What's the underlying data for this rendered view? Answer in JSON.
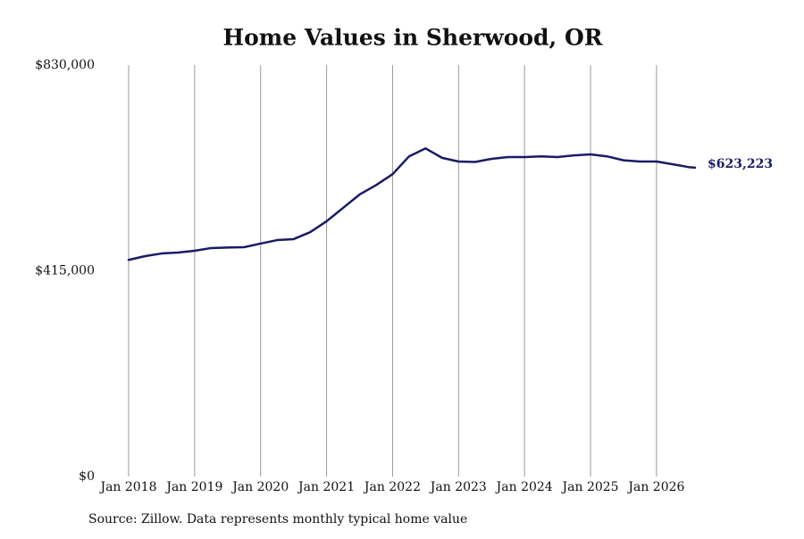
{
  "chart_data": {
    "type": "line",
    "title": "Home Values in Sherwood, OR",
    "source": "Source: Zillow. Data represents monthly typical home value",
    "x": [
      "2018-01",
      "2018-04",
      "2018-07",
      "2018-10",
      "2019-01",
      "2019-04",
      "2019-07",
      "2019-10",
      "2020-01",
      "2020-04",
      "2020-07",
      "2020-10",
      "2021-01",
      "2021-04",
      "2021-07",
      "2021-10",
      "2022-01",
      "2022-04",
      "2022-07",
      "2022-10",
      "2023-01",
      "2023-04",
      "2023-07",
      "2023-10",
      "2024-01",
      "2024-04",
      "2024-07",
      "2024-10",
      "2025-01",
      "2025-04",
      "2025-07",
      "2025-10",
      "2026-01",
      "2026-04",
      "2026-07",
      "2026-08"
    ],
    "series": [
      {
        "color": "#1b1a66",
        "values": [
          437000,
          444700,
          450000,
          452000,
          455500,
          461000,
          462000,
          462700,
          470000,
          477000,
          479000,
          493000,
          515000,
          542000,
          569000,
          588000,
          610000,
          646000,
          662000,
          643000,
          635500,
          634700,
          641000,
          644500,
          644500,
          646000,
          644500,
          648000,
          650000,
          646000,
          638000,
          635500,
          635500,
          630000,
          624000,
          623223
        ],
        "value_labels": [
          null,
          null,
          null,
          null,
          null,
          null,
          null,
          null,
          null,
          null,
          null,
          null,
          null,
          null,
          null,
          null,
          null,
          null,
          null,
          null,
          null,
          null,
          null,
          null,
          null,
          null,
          null,
          null,
          null,
          null,
          null,
          null,
          null,
          null,
          null,
          "$623,223"
        ]
      }
    ],
    "xlim": [
      "2018-01",
      "2026-08"
    ],
    "xticks": [
      {
        "value": "2018-01",
        "label": "Jan 2018"
      },
      {
        "value": "2019-01",
        "label": "Jan 2019"
      },
      {
        "value": "2020-01",
        "label": "Jan 2020"
      },
      {
        "value": "2021-01",
        "label": "Jan 2021"
      },
      {
        "value": "2022-01",
        "label": "Jan 2022"
      },
      {
        "value": "2023-01",
        "label": "Jan 2023"
      },
      {
        "value": "2024-01",
        "label": "Jan 2024"
      },
      {
        "value": "2025-01",
        "label": "Jan 2025"
      },
      {
        "value": "2026-01",
        "label": "Jan 2026"
      }
    ],
    "ylim": [
      0,
      830000
    ],
    "yticks": [
      {
        "value": 0,
        "label": "$0"
      },
      {
        "value": 415000,
        "label": "$415,000"
      },
      {
        "value": 830000,
        "label": "$830,000"
      }
    ],
    "grid": "x"
  }
}
